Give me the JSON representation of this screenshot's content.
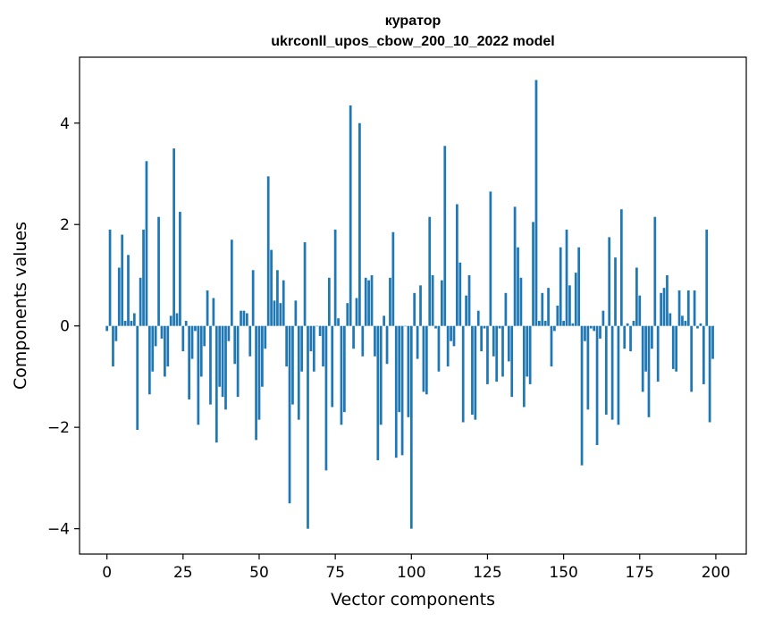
{
  "chart_data": {
    "type": "bar",
    "title": "куратор",
    "subtitle": "ukrconll_upos_cbow_200_10_2022 model",
    "xlabel": "Vector components",
    "ylabel": "Components values",
    "xlim": [
      -9,
      210
    ],
    "ylim": [
      -4.5,
      5.3
    ],
    "xticks": [
      0,
      25,
      50,
      75,
      100,
      125,
      150,
      175,
      200
    ],
    "yticks": [
      -4,
      -2,
      0,
      2,
      4
    ],
    "ytick_labels": [
      "−4",
      "−2",
      "0",
      "2",
      "4"
    ],
    "grid": false,
    "color": "#1f77b4",
    "x": [
      0,
      1,
      2,
      3,
      4,
      5,
      6,
      7,
      8,
      9,
      10,
      11,
      12,
      13,
      14,
      15,
      16,
      17,
      18,
      19,
      20,
      21,
      22,
      23,
      24,
      25,
      26,
      27,
      28,
      29,
      30,
      31,
      32,
      33,
      34,
      35,
      36,
      37,
      38,
      39,
      40,
      41,
      42,
      43,
      44,
      45,
      46,
      47,
      48,
      49,
      50,
      51,
      52,
      53,
      54,
      55,
      56,
      57,
      58,
      59,
      60,
      61,
      62,
      63,
      64,
      65,
      66,
      67,
      68,
      69,
      70,
      71,
      72,
      73,
      74,
      75,
      76,
      77,
      78,
      79,
      80,
      81,
      82,
      83,
      84,
      85,
      86,
      87,
      88,
      89,
      90,
      91,
      92,
      93,
      94,
      95,
      96,
      97,
      98,
      99,
      100,
      101,
      102,
      103,
      104,
      105,
      106,
      107,
      108,
      109,
      110,
      111,
      112,
      113,
      114,
      115,
      116,
      117,
      118,
      119,
      120,
      121,
      122,
      123,
      124,
      125,
      126,
      127,
      128,
      129,
      130,
      131,
      132,
      133,
      134,
      135,
      136,
      137,
      138,
      139,
      140,
      141,
      142,
      143,
      144,
      145,
      146,
      147,
      148,
      149,
      150,
      151,
      152,
      153,
      154,
      155,
      156,
      157,
      158,
      159,
      160,
      161,
      162,
      163,
      164,
      165,
      166,
      167,
      168,
      169,
      170,
      171,
      172,
      173,
      174,
      175,
      176,
      177,
      178,
      179,
      180,
      181,
      182,
      183,
      184,
      185,
      186,
      187,
      188,
      189,
      190,
      191,
      192,
      193,
      194,
      195,
      196,
      197,
      198,
      199
    ],
    "values": [
      -0.1,
      1.9,
      -0.8,
      -0.3,
      1.15,
      1.8,
      0.1,
      1.4,
      0.1,
      0.25,
      -2.05,
      0.95,
      1.9,
      3.25,
      -1.35,
      -0.9,
      -0.4,
      2.15,
      -0.25,
      -1.0,
      -0.8,
      0.2,
      3.5,
      0.25,
      2.25,
      -0.5,
      0.1,
      -1.45,
      -0.65,
      -0.1,
      -1.95,
      -1.0,
      -0.4,
      0.7,
      -1.55,
      0.55,
      -2.3,
      -1.2,
      -1.4,
      -1.65,
      -0.3,
      1.7,
      -0.75,
      -1.4,
      0.3,
      0.3,
      0.25,
      -0.6,
      1.1,
      -2.25,
      -1.85,
      -1.2,
      -0.45,
      2.95,
      1.5,
      0.5,
      1.1,
      0.45,
      0.9,
      -0.8,
      -3.5,
      -1.55,
      0.5,
      -1.85,
      -0.9,
      1.65,
      -4.0,
      -0.5,
      -0.9,
      0.0,
      -0.2,
      -0.8,
      -2.85,
      0.95,
      -1.6,
      1.9,
      0.15,
      -1.95,
      -1.7,
      0.45,
      4.35,
      -0.45,
      0.55,
      4.0,
      -0.6,
      0.95,
      0.9,
      1.0,
      -0.6,
      -2.65,
      -1.95,
      0.2,
      -0.75,
      0.95,
      1.85,
      -2.6,
      -1.7,
      -2.55,
      0.0,
      -1.8,
      -4.0,
      0.65,
      -0.65,
      0.8,
      -1.3,
      -1.35,
      2.15,
      1.0,
      -0.05,
      -0.9,
      0.9,
      3.55,
      -0.8,
      -0.3,
      -0.4,
      2.4,
      1.25,
      -1.9,
      0.6,
      1.0,
      -1.75,
      -1.85,
      0.3,
      -0.5,
      -0.05,
      -1.15,
      2.65,
      -0.6,
      -1.1,
      -0.05,
      -1.0,
      0.65,
      -0.7,
      -1.4,
      2.35,
      1.55,
      0.95,
      -1.6,
      -1.0,
      -1.15,
      2.05,
      4.85,
      0.1,
      0.65,
      0.1,
      0.75,
      -0.8,
      -0.1,
      0.4,
      1.55,
      0.1,
      1.9,
      0.8,
      0.05,
      1.05,
      1.55,
      -2.75,
      -0.3,
      -1.65,
      -0.05,
      -0.1,
      -2.35,
      -0.25,
      0.3,
      -1.75,
      1.75,
      -1.85,
      1.35,
      -1.95,
      2.3,
      -0.45,
      0.05,
      -0.5,
      0.1,
      1.15,
      0.6,
      -1.3,
      -0.9,
      -1.8,
      -0.45,
      2.15,
      -1.1,
      0.65,
      0.75,
      1.0,
      0.25,
      -0.85,
      -0.9,
      0.7,
      0.2,
      0.1,
      0.7,
      -1.3,
      0.7,
      -0.05,
      0.05,
      -1.15,
      1.9,
      -1.9,
      -0.65
    ]
  }
}
